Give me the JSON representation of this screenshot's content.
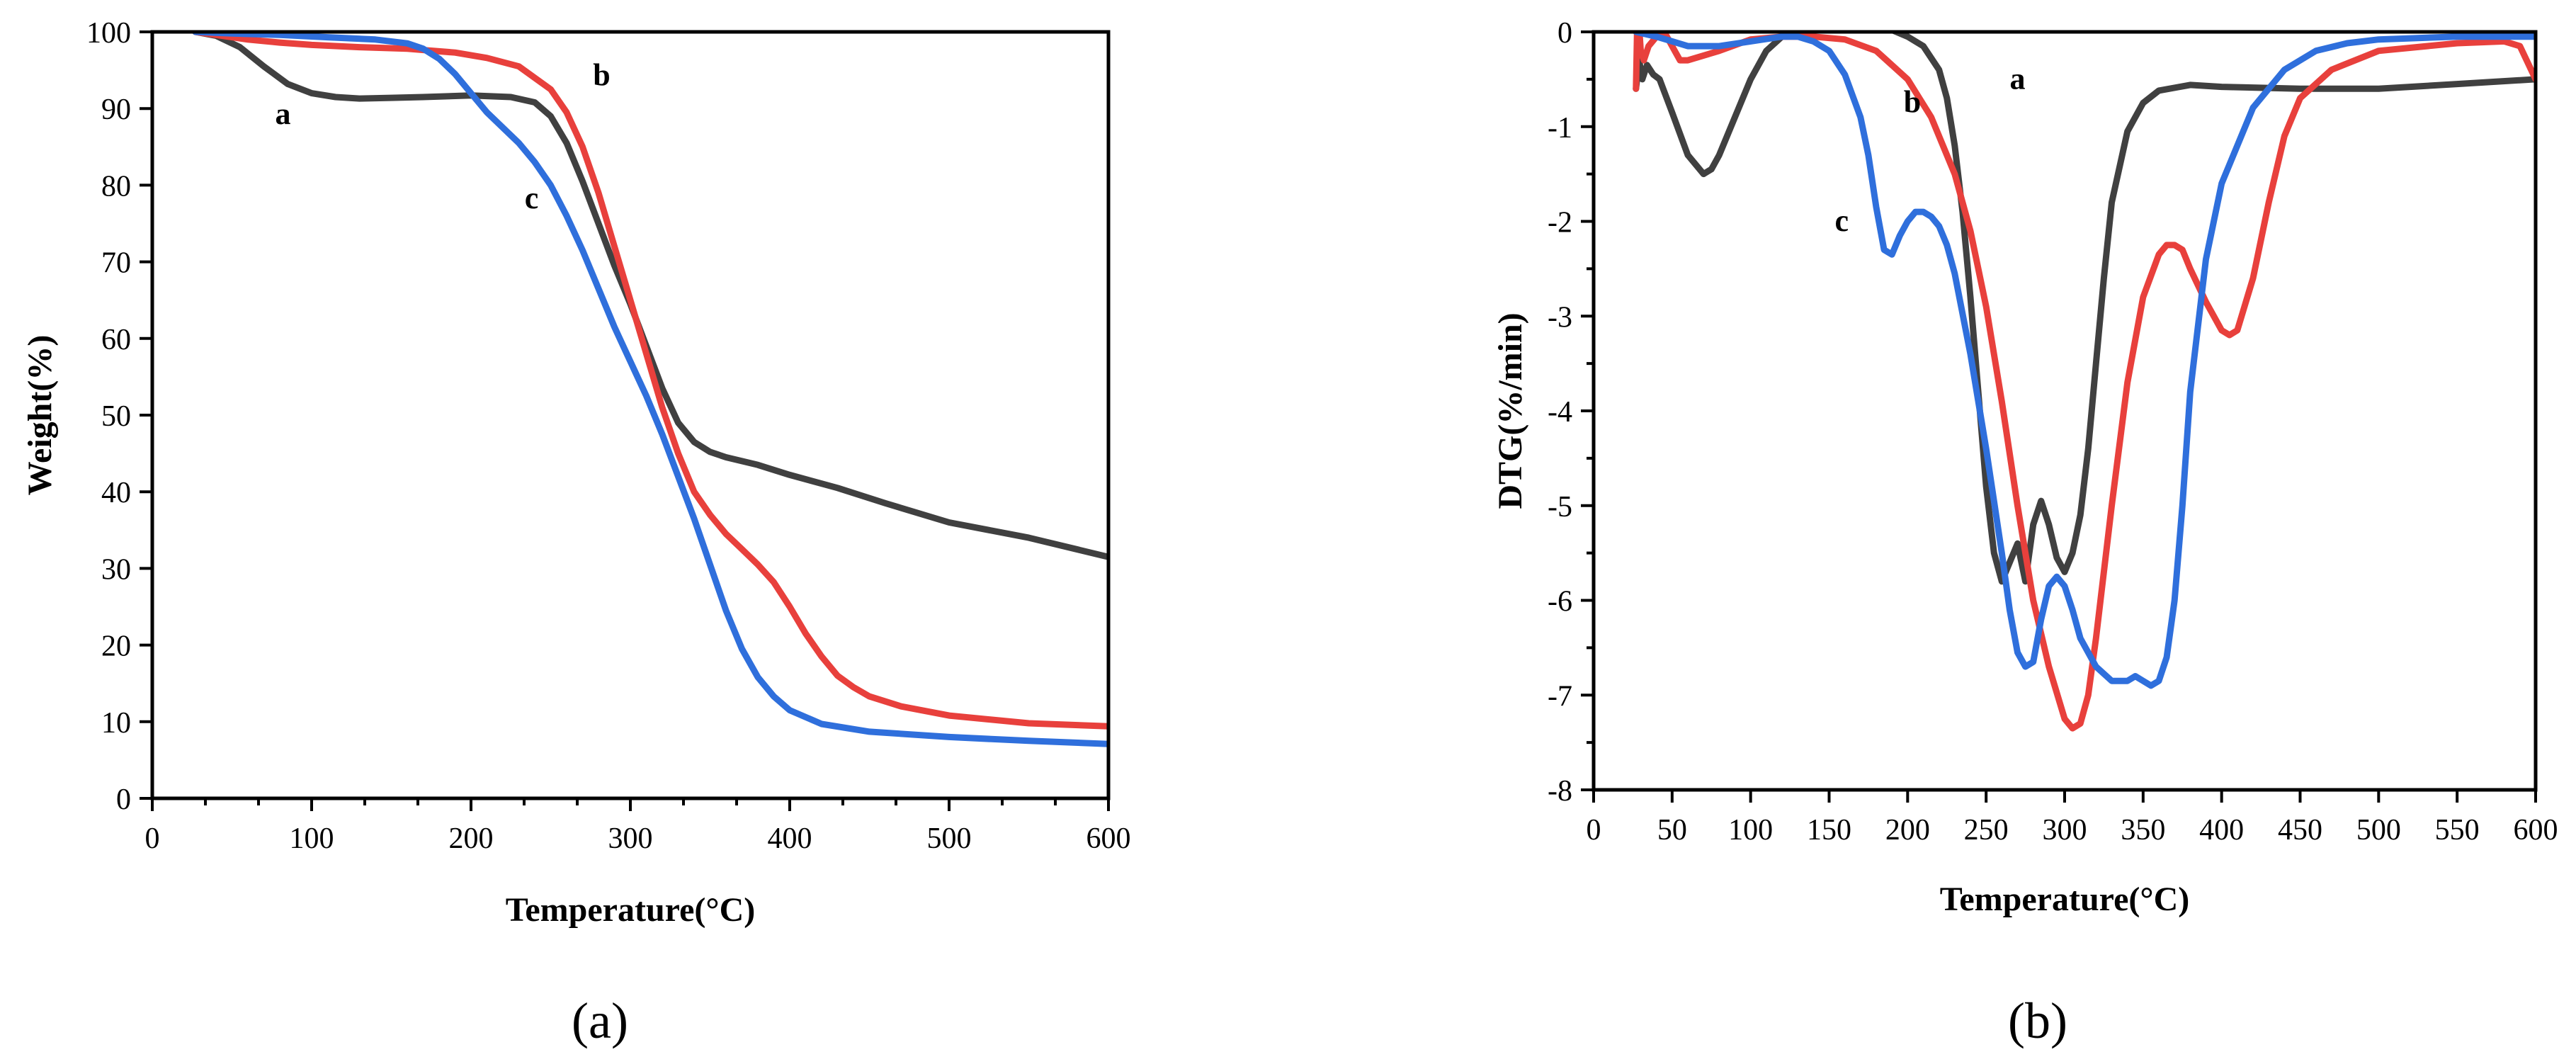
{
  "colors": {
    "a": "#404040",
    "b": "#e8403c",
    "c": "#2f6fdc",
    "axis": "#000000",
    "background": "#ffffff"
  },
  "chart_data": [
    {
      "id": "panel-a",
      "type": "line",
      "panel_label": "(a)",
      "xlabel": "Temperature(°C)",
      "ylabel": "Weight(%)",
      "xlim": [
        0,
        600
      ],
      "ylim": [
        0,
        100
      ],
      "xticks": [
        0,
        100,
        200,
        300,
        400,
        500,
        600
      ],
      "yticks": [
        0,
        10,
        20,
        30,
        40,
        50,
        60,
        70,
        80,
        90,
        100
      ],
      "grid": false,
      "annotations": [
        {
          "text": "a",
          "series": "a",
          "x": 82,
          "y": 88
        },
        {
          "text": "b",
          "series": "b",
          "x": 282,
          "y": 93
        },
        {
          "text": "c",
          "series": "c",
          "x": 238,
          "y": 77
        }
      ],
      "series": [
        {
          "name": "a",
          "x": [
            27,
            40,
            55,
            70,
            85,
            100,
            115,
            130,
            150,
            170,
            200,
            225,
            240,
            250,
            260,
            270,
            280,
            290,
            300,
            310,
            320,
            330,
            340,
            350,
            360,
            380,
            400,
            430,
            460,
            500,
            550,
            600
          ],
          "y": [
            100,
            99.5,
            98,
            95.5,
            93.2,
            92,
            91.5,
            91.3,
            91.4,
            91.5,
            91.7,
            91.5,
            90.8,
            89,
            85.5,
            80.5,
            75,
            69.5,
            64.5,
            59,
            53.5,
            49,
            46.5,
            45.2,
            44.5,
            43.5,
            42.2,
            40.5,
            38.5,
            36,
            34,
            31.5
          ]
        },
        {
          "name": "b",
          "x": [
            27,
            40,
            60,
            80,
            100,
            130,
            160,
            190,
            210,
            230,
            250,
            260,
            270,
            280,
            290,
            300,
            310,
            320,
            330,
            340,
            350,
            360,
            370,
            380,
            390,
            400,
            410,
            420,
            430,
            440,
            450,
            470,
            500,
            550,
            600
          ],
          "y": [
            100,
            99.6,
            99,
            98.6,
            98.3,
            98,
            97.8,
            97.3,
            96.6,
            95.5,
            92.5,
            89.5,
            85,
            79,
            72,
            65,
            58,
            51,
            45,
            40,
            37,
            34.5,
            32.5,
            30.5,
            28.2,
            25,
            21.5,
            18.5,
            16,
            14.5,
            13.3,
            12,
            10.8,
            9.8,
            9.4
          ]
        },
        {
          "name": "c",
          "x": [
            27,
            50,
            80,
            110,
            140,
            160,
            170,
            180,
            190,
            200,
            210,
            220,
            230,
            240,
            250,
            260,
            270,
            280,
            290,
            300,
            310,
            320,
            330,
            340,
            350,
            360,
            370,
            380,
            390,
            400,
            420,
            450,
            500,
            550,
            600
          ],
          "y": [
            100,
            99.8,
            99.6,
            99.3,
            99,
            98.5,
            97.8,
            96.5,
            94.5,
            92,
            89.5,
            87.5,
            85.5,
            83,
            80,
            76,
            71.5,
            66.5,
            61.5,
            57,
            52.5,
            47.5,
            42,
            36.5,
            30.5,
            24.5,
            19.5,
            15.8,
            13.3,
            11.5,
            9.7,
            8.7,
            8,
            7.5,
            7.1
          ]
        }
      ]
    },
    {
      "id": "panel-b",
      "type": "line",
      "panel_label": "(b)",
      "xlabel": "Temperature(°C)",
      "ylabel": "DTG(%/min)",
      "xlim": [
        0,
        600
      ],
      "ylim": [
        -8,
        0
      ],
      "xticks": [
        0,
        50,
        100,
        150,
        200,
        250,
        300,
        350,
        400,
        450,
        500,
        550,
        600
      ],
      "yticks": [
        0,
        -1,
        -2,
        -3,
        -4,
        -5,
        -6,
        -7,
        -8
      ],
      "grid": false,
      "annotations": [
        {
          "text": "a",
          "series": "a",
          "x": 270,
          "y": -0.6
        },
        {
          "text": "b",
          "series": "b",
          "x": 203,
          "y": -0.85
        },
        {
          "text": "c",
          "series": "c",
          "x": 158,
          "y": -2.1
        }
      ],
      "series": [
        {
          "name": "a",
          "x": [
            27,
            29,
            31,
            34,
            38,
            42,
            50,
            60,
            70,
            75,
            80,
            90,
            100,
            110,
            120,
            140,
            160,
            170,
            190,
            200,
            210,
            220,
            225,
            230,
            235,
            240,
            245,
            250,
            255,
            260,
            265,
            270,
            275,
            280,
            285,
            290,
            295,
            300,
            305,
            310,
            315,
            320,
            325,
            330,
            340,
            350,
            360,
            380,
            400,
            450,
            500,
            550,
            600
          ],
          "y": [
            -0.6,
            -0.3,
            -0.5,
            -0.35,
            -0.45,
            -0.5,
            -0.85,
            -1.3,
            -1.5,
            -1.45,
            -1.3,
            -0.9,
            -0.5,
            -0.2,
            -0.05,
            0.05,
            0.08,
            0.07,
            0.02,
            -0.05,
            -0.15,
            -0.4,
            -0.7,
            -1.2,
            -1.9,
            -2.8,
            -3.8,
            -4.8,
            -5.5,
            -5.8,
            -5.6,
            -5.4,
            -5.8,
            -5.2,
            -4.95,
            -5.2,
            -5.55,
            -5.7,
            -5.5,
            -5.1,
            -4.4,
            -3.5,
            -2.6,
            -1.8,
            -1.05,
            -0.75,
            -0.62,
            -0.56,
            -0.58,
            -0.6,
            -0.6,
            -0.55,
            -0.5
          ]
        },
        {
          "name": "b",
          "x": [
            27,
            28,
            30,
            32,
            35,
            40,
            45,
            50,
            55,
            60,
            70,
            80,
            100,
            120,
            140,
            160,
            180,
            200,
            215,
            230,
            240,
            250,
            260,
            270,
            280,
            290,
            300,
            305,
            310,
            315,
            320,
            330,
            340,
            350,
            360,
            365,
            370,
            375,
            380,
            390,
            400,
            405,
            410,
            420,
            430,
            440,
            450,
            470,
            500,
            550,
            580,
            590,
            600
          ],
          "y": [
            -0.6,
            0.3,
            -0.2,
            -0.3,
            -0.15,
            -0.05,
            0.0,
            -0.15,
            -0.3,
            -0.3,
            -0.25,
            -0.2,
            -0.08,
            -0.05,
            -0.05,
            -0.08,
            -0.2,
            -0.5,
            -0.9,
            -1.5,
            -2.1,
            -2.9,
            -3.9,
            -5.0,
            -6.0,
            -6.7,
            -7.25,
            -7.35,
            -7.3,
            -7.0,
            -6.4,
            -5.0,
            -3.7,
            -2.8,
            -2.35,
            -2.25,
            -2.25,
            -2.3,
            -2.5,
            -2.85,
            -3.15,
            -3.2,
            -3.15,
            -2.6,
            -1.8,
            -1.1,
            -0.7,
            -0.4,
            -0.2,
            -0.12,
            -0.1,
            -0.15,
            -0.5
          ]
        },
        {
          "name": "c",
          "x": [
            27,
            40,
            60,
            80,
            100,
            120,
            130,
            140,
            150,
            160,
            170,
            175,
            180,
            185,
            190,
            195,
            200,
            205,
            210,
            215,
            220,
            225,
            230,
            240,
            250,
            260,
            265,
            270,
            275,
            280,
            285,
            290,
            295,
            300,
            305,
            310,
            320,
            330,
            340,
            345,
            350,
            355,
            360,
            365,
            370,
            375,
            380,
            390,
            400,
            420,
            440,
            460,
            480,
            500,
            550,
            600
          ],
          "y": [
            0.0,
            -0.05,
            -0.15,
            -0.15,
            -0.1,
            -0.05,
            -0.05,
            -0.1,
            -0.2,
            -0.45,
            -0.9,
            -1.3,
            -1.85,
            -2.3,
            -2.35,
            -2.15,
            -2.0,
            -1.9,
            -1.9,
            -1.95,
            -2.05,
            -2.25,
            -2.55,
            -3.4,
            -4.4,
            -5.5,
            -6.1,
            -6.55,
            -6.7,
            -6.65,
            -6.2,
            -5.85,
            -5.75,
            -5.85,
            -6.1,
            -6.4,
            -6.7,
            -6.85,
            -6.85,
            -6.8,
            -6.85,
            -6.9,
            -6.85,
            -6.6,
            -6.0,
            -5.0,
            -3.8,
            -2.4,
            -1.6,
            -0.8,
            -0.4,
            -0.2,
            -0.12,
            -0.08,
            -0.05,
            -0.05
          ]
        }
      ]
    }
  ]
}
